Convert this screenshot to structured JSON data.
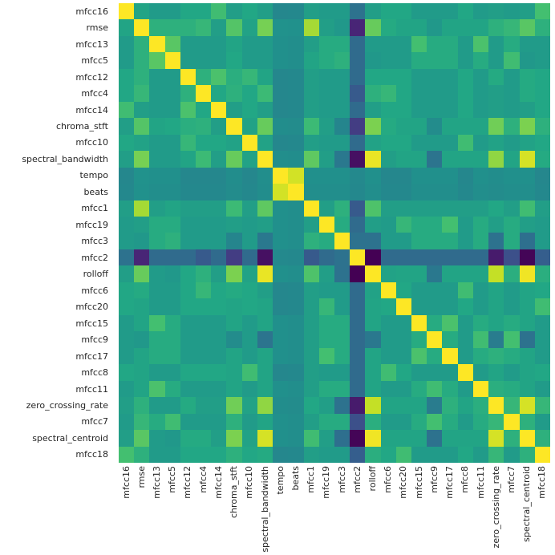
{
  "figure": {
    "background": "#ffffff",
    "text_color": "#262626"
  },
  "chart_data": {
    "type": "heatmap",
    "title": "",
    "xlabel": "",
    "ylabel": "",
    "legend": "none",
    "grid": false,
    "colormap": "viridis",
    "vmin": -0.92,
    "vmax": 1.0,
    "colormap_stops": [
      {
        "t": 0.0,
        "color": "#440154"
      },
      {
        "t": 0.1,
        "color": "#482475"
      },
      {
        "t": 0.2,
        "color": "#414487"
      },
      {
        "t": 0.3,
        "color": "#355f8d"
      },
      {
        "t": 0.4,
        "color": "#2a788e"
      },
      {
        "t": 0.5,
        "color": "#21918c"
      },
      {
        "t": 0.6,
        "color": "#22a884"
      },
      {
        "t": 0.7,
        "color": "#44bf70"
      },
      {
        "t": 0.8,
        "color": "#7ad151"
      },
      {
        "t": 0.9,
        "color": "#bddf26"
      },
      {
        "t": 1.0,
        "color": "#fde725"
      }
    ],
    "labels": [
      "mfcc16",
      "rmse",
      "mfcc13",
      "mfcc5",
      "mfcc12",
      "mfcc4",
      "mfcc14",
      "chroma_stft",
      "mfcc10",
      "spectral_bandwidth",
      "tempo",
      "beats",
      "mfcc1",
      "mfcc19",
      "mfcc3",
      "mfcc2",
      "rolloff",
      "mfcc6",
      "mfcc20",
      "mfcc15",
      "mfcc9",
      "mfcc17",
      "mfcc8",
      "mfcc11",
      "zero_crossing_rate",
      "mfcc7",
      "spectral_centroid",
      "mfcc18"
    ],
    "matrix": [
      [
        1.0,
        0.2,
        0.12,
        0.12,
        0.22,
        0.22,
        0.4,
        0.15,
        0.22,
        0.15,
        -0.04,
        -0.03,
        0.15,
        0.12,
        0.12,
        -0.2,
        0.15,
        0.22,
        0.22,
        0.12,
        0.12,
        0.12,
        0.22,
        0.12,
        0.15,
        0.12,
        0.15,
        0.42
      ],
      [
        0.2,
        1.0,
        0.3,
        0.3,
        0.3,
        0.35,
        0.15,
        0.48,
        0.18,
        0.6,
        0.05,
        0.04,
        0.74,
        0.15,
        0.1,
        -0.72,
        0.55,
        0.25,
        0.2,
        0.2,
        0.1,
        0.2,
        0.2,
        0.2,
        0.3,
        0.35,
        0.5,
        0.3
      ],
      [
        0.12,
        0.3,
        1.0,
        0.5,
        0.12,
        0.12,
        0.12,
        0.2,
        0.12,
        0.12,
        0.03,
        0.02,
        0.15,
        0.26,
        0.26,
        -0.25,
        0.12,
        0.12,
        0.12,
        0.42,
        0.26,
        0.26,
        0.12,
        0.45,
        0.12,
        0.26,
        0.12,
        0.12
      ],
      [
        0.12,
        0.3,
        0.5,
        1.0,
        0.12,
        0.12,
        0.12,
        0.22,
        0.12,
        0.12,
        0.03,
        0.02,
        0.2,
        0.26,
        0.3,
        -0.25,
        0.1,
        0.12,
        0.12,
        0.26,
        0.26,
        0.26,
        0.12,
        0.26,
        0.12,
        0.4,
        0.1,
        0.12
      ],
      [
        0.22,
        0.3,
        0.12,
        0.12,
        1.0,
        0.3,
        0.45,
        0.28,
        0.35,
        0.2,
        -0.04,
        -0.03,
        0.15,
        0.12,
        0.12,
        -0.25,
        0.22,
        0.22,
        0.22,
        0.12,
        0.12,
        0.12,
        0.22,
        0.12,
        0.25,
        0.12,
        0.25,
        0.22
      ],
      [
        0.22,
        0.35,
        0.12,
        0.12,
        0.3,
        1.0,
        0.22,
        0.3,
        0.22,
        0.38,
        -0.04,
        -0.03,
        0.15,
        0.12,
        0.12,
        -0.38,
        0.3,
        0.35,
        0.22,
        0.12,
        0.12,
        0.12,
        0.22,
        0.12,
        0.15,
        0.12,
        0.25,
        0.22
      ],
      [
        0.4,
        0.15,
        0.12,
        0.12,
        0.45,
        0.22,
        1.0,
        0.15,
        0.22,
        0.15,
        -0.04,
        -0.03,
        0.15,
        0.12,
        0.12,
        -0.25,
        0.15,
        0.22,
        0.22,
        0.12,
        0.12,
        0.12,
        0.22,
        0.12,
        0.15,
        0.12,
        0.15,
        0.22
      ],
      [
        0.15,
        0.48,
        0.2,
        0.22,
        0.28,
        0.3,
        0.15,
        1.0,
        0.18,
        0.55,
        0.01,
        0.0,
        0.38,
        0.15,
        -0.05,
        -0.58,
        0.62,
        0.25,
        0.2,
        0.2,
        0.0,
        0.2,
        0.2,
        0.2,
        0.58,
        0.3,
        0.62,
        0.3
      ],
      [
        0.22,
        0.18,
        0.12,
        0.12,
        0.35,
        0.22,
        0.22,
        0.18,
        1.0,
        0.18,
        -0.04,
        -0.03,
        0.15,
        0.12,
        0.12,
        -0.25,
        0.18,
        0.22,
        0.22,
        0.12,
        0.12,
        0.12,
        0.4,
        0.12,
        0.18,
        0.12,
        0.18,
        0.22
      ],
      [
        0.15,
        0.6,
        0.12,
        0.12,
        0.2,
        0.38,
        0.15,
        0.55,
        0.18,
        1.0,
        0.02,
        0.01,
        0.52,
        0.15,
        -0.15,
        -0.84,
        0.94,
        0.15,
        0.2,
        0.2,
        -0.18,
        0.2,
        0.2,
        0.2,
        0.68,
        0.2,
        0.88,
        0.25
      ],
      [
        -0.04,
        0.05,
        0.03,
        0.03,
        -0.04,
        -0.04,
        -0.04,
        0.01,
        -0.04,
        0.02,
        1.0,
        0.87,
        0.03,
        0.03,
        0.03,
        -0.02,
        0.03,
        -0.04,
        -0.04,
        0.03,
        0.03,
        0.03,
        -0.04,
        0.03,
        0.01,
        0.03,
        0.03,
        -0.04
      ],
      [
        -0.03,
        0.04,
        0.02,
        0.02,
        -0.03,
        -0.03,
        -0.03,
        0.0,
        -0.03,
        0.01,
        0.87,
        1.0,
        0.02,
        0.02,
        0.02,
        -0.03,
        0.02,
        -0.03,
        -0.03,
        0.02,
        0.02,
        0.02,
        -0.03,
        0.02,
        0.0,
        0.02,
        0.02,
        -0.03
      ],
      [
        0.15,
        0.74,
        0.15,
        0.2,
        0.15,
        0.15,
        0.15,
        0.38,
        0.15,
        0.52,
        0.03,
        0.02,
        1.0,
        0.15,
        0.3,
        -0.38,
        0.46,
        0.15,
        0.15,
        0.15,
        0.15,
        0.15,
        0.15,
        0.15,
        0.22,
        0.15,
        0.4,
        0.15
      ],
      [
        0.12,
        0.15,
        0.26,
        0.26,
        0.12,
        0.12,
        0.12,
        0.15,
        0.12,
        0.15,
        0.03,
        0.02,
        0.15,
        1.0,
        0.26,
        -0.25,
        0.15,
        0.12,
        0.35,
        0.26,
        0.26,
        0.42,
        0.12,
        0.26,
        0.15,
        0.26,
        0.15,
        0.12
      ],
      [
        0.12,
        0.1,
        0.26,
        0.3,
        0.12,
        0.12,
        0.12,
        -0.05,
        0.12,
        -0.15,
        0.03,
        0.02,
        0.3,
        0.26,
        1.0,
        -0.2,
        -0.2,
        0.12,
        0.12,
        0.26,
        0.26,
        0.26,
        0.12,
        0.26,
        -0.2,
        0.26,
        -0.22,
        0.12
      ],
      [
        -0.2,
        -0.72,
        -0.25,
        -0.25,
        -0.25,
        -0.38,
        -0.25,
        -0.58,
        -0.25,
        -0.84,
        -0.02,
        -0.03,
        -0.38,
        -0.25,
        -0.2,
        1.0,
        -0.92,
        -0.25,
        -0.25,
        -0.25,
        -0.25,
        -0.25,
        -0.25,
        -0.25,
        -0.78,
        -0.45,
        -0.9,
        -0.35
      ],
      [
        0.15,
        0.55,
        0.12,
        0.1,
        0.22,
        0.3,
        0.15,
        0.62,
        0.18,
        0.94,
        0.03,
        0.02,
        0.46,
        0.15,
        -0.2,
        -0.92,
        1.0,
        0.18,
        0.2,
        0.2,
        -0.15,
        0.2,
        0.2,
        0.2,
        0.83,
        0.28,
        0.96,
        0.28
      ],
      [
        0.22,
        0.25,
        0.12,
        0.12,
        0.22,
        0.35,
        0.22,
        0.25,
        0.22,
        0.15,
        -0.04,
        -0.03,
        0.15,
        0.12,
        0.12,
        -0.25,
        0.18,
        1.0,
        0.22,
        0.12,
        0.12,
        0.12,
        0.4,
        0.12,
        0.2,
        0.12,
        0.2,
        0.22
      ],
      [
        0.22,
        0.2,
        0.12,
        0.12,
        0.22,
        0.22,
        0.22,
        0.2,
        0.22,
        0.2,
        -0.04,
        -0.03,
        0.15,
        0.35,
        0.12,
        -0.25,
        0.2,
        0.22,
        1.0,
        0.12,
        0.12,
        0.12,
        0.22,
        0.12,
        0.2,
        0.12,
        0.2,
        0.4
      ],
      [
        0.12,
        0.2,
        0.42,
        0.26,
        0.12,
        0.12,
        0.12,
        0.2,
        0.12,
        0.2,
        0.03,
        0.02,
        0.15,
        0.26,
        0.26,
        -0.25,
        0.2,
        0.12,
        0.12,
        1.0,
        0.26,
        0.45,
        0.12,
        0.26,
        0.2,
        0.26,
        0.2,
        0.12
      ],
      [
        0.12,
        0.1,
        0.26,
        0.26,
        0.12,
        0.12,
        0.12,
        0.0,
        0.12,
        -0.18,
        0.03,
        0.02,
        0.15,
        0.26,
        0.26,
        -0.25,
        -0.15,
        0.12,
        0.12,
        0.26,
        1.0,
        0.26,
        0.12,
        0.4,
        -0.12,
        0.42,
        -0.2,
        0.12
      ],
      [
        0.12,
        0.2,
        0.26,
        0.26,
        0.12,
        0.12,
        0.12,
        0.2,
        0.12,
        0.2,
        0.03,
        0.02,
        0.15,
        0.42,
        0.26,
        -0.25,
        0.2,
        0.12,
        0.12,
        0.45,
        0.26,
        1.0,
        0.12,
        0.26,
        0.3,
        0.26,
        0.2,
        0.12
      ],
      [
        0.22,
        0.2,
        0.12,
        0.12,
        0.22,
        0.22,
        0.22,
        0.2,
        0.4,
        0.2,
        -0.04,
        -0.03,
        0.15,
        0.12,
        0.12,
        -0.25,
        0.2,
        0.4,
        0.22,
        0.12,
        0.12,
        0.12,
        1.0,
        0.12,
        0.2,
        0.12,
        0.2,
        0.22
      ],
      [
        0.12,
        0.2,
        0.45,
        0.26,
        0.12,
        0.12,
        0.12,
        0.2,
        0.12,
        0.2,
        0.03,
        0.02,
        0.15,
        0.26,
        0.26,
        -0.25,
        0.2,
        0.12,
        0.12,
        0.26,
        0.4,
        0.26,
        0.12,
        1.0,
        0.28,
        0.26,
        0.2,
        0.12
      ],
      [
        0.15,
        0.3,
        0.12,
        0.12,
        0.25,
        0.15,
        0.15,
        0.58,
        0.18,
        0.68,
        0.01,
        0.0,
        0.22,
        0.15,
        -0.2,
        -0.78,
        0.83,
        0.2,
        0.2,
        0.2,
        -0.12,
        0.3,
        0.2,
        0.28,
        1.0,
        0.35,
        0.88,
        0.35
      ],
      [
        0.12,
        0.35,
        0.26,
        0.4,
        0.12,
        0.12,
        0.12,
        0.3,
        0.12,
        0.2,
        0.03,
        0.02,
        0.15,
        0.26,
        0.26,
        -0.45,
        0.28,
        0.12,
        0.12,
        0.26,
        0.42,
        0.26,
        0.12,
        0.26,
        0.35,
        1.0,
        0.3,
        0.12
      ],
      [
        0.15,
        0.5,
        0.12,
        0.1,
        0.25,
        0.25,
        0.15,
        0.62,
        0.18,
        0.88,
        0.03,
        0.02,
        0.4,
        0.15,
        -0.22,
        -0.9,
        0.96,
        0.2,
        0.2,
        0.2,
        -0.2,
        0.2,
        0.2,
        0.2,
        0.88,
        0.3,
        1.0,
        0.3
      ],
      [
        0.42,
        0.3,
        0.12,
        0.12,
        0.22,
        0.22,
        0.22,
        0.3,
        0.22,
        0.25,
        -0.04,
        -0.03,
        0.15,
        0.12,
        0.12,
        -0.35,
        0.28,
        0.22,
        0.4,
        0.12,
        0.12,
        0.12,
        0.22,
        0.12,
        0.35,
        0.12,
        0.3,
        1.0
      ]
    ]
  }
}
